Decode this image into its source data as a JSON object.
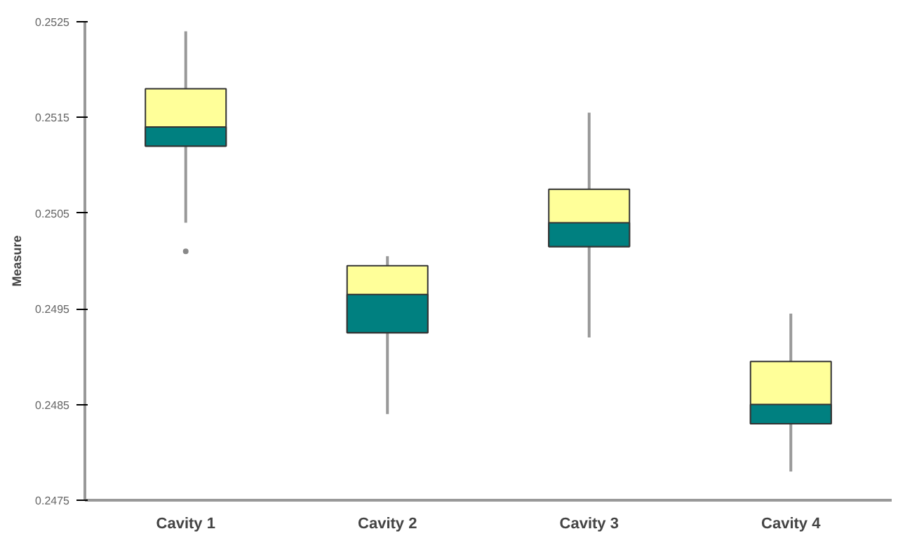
{
  "chart_data": {
    "type": "box",
    "ylabel": "Measure",
    "categories": [
      "Cavity 1",
      "Cavity 2",
      "Cavity 3",
      "Cavity 4"
    ],
    "series": [
      {
        "color": "#ffff99",
        "boxes": [
          {
            "low": 0.2504,
            "q1": 0.2512,
            "median": 0.2514,
            "q3": 0.2518,
            "high": 0.2524,
            "outliers": [
              0.2501
            ]
          },
          {
            "low": 0.2484,
            "q1": 0.24925,
            "median": 0.24965,
            "q3": 0.24995,
            "high": 0.25005
          },
          {
            "low": 0.2492,
            "q1": 0.25015,
            "median": 0.2504,
            "q3": 0.25075,
            "high": 0.25155
          },
          {
            "low": 0.2478,
            "q1": 0.2483,
            "median": 0.2485,
            "q3": 0.24895,
            "high": 0.24945
          }
        ]
      }
    ],
    "color": "#008080",
    "ylim": [
      0.2475,
      0.2525
    ],
    "yticks": [
      0.2475,
      0.2485,
      0.2495,
      0.2505,
      0.2515,
      0.2525
    ],
    "grid": false
  }
}
